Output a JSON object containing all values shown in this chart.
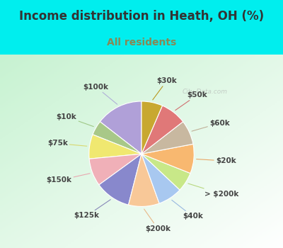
{
  "title": "Income distribution in Heath, OH (%)",
  "subtitle": "All residents",
  "title_color": "#333333",
  "subtitle_color": "#888855",
  "bg_outer": "#00eeee",
  "watermark": "City-Data.com",
  "labels": [
    "$100k",
    "$10k",
    "$75k",
    "$150k",
    "$125k",
    "$200k",
    "$40k",
    "> $200k",
    "$20k",
    "$60k",
    "$50k",
    "$30k"
  ],
  "values": [
    14.5,
    4.5,
    7.5,
    8.5,
    11.0,
    9.5,
    7.5,
    6.0,
    9.0,
    7.5,
    8.0,
    6.5
  ],
  "colors": [
    "#b0a0d8",
    "#a8c888",
    "#f0e870",
    "#f0b0b8",
    "#8888cc",
    "#f8c898",
    "#a8c8f0",
    "#c8e888",
    "#f8b870",
    "#c8b8a0",
    "#e07878",
    "#c8a830"
  ],
  "label_line_colors": [
    "#b0b0d8",
    "#a0c888",
    "#d8d870",
    "#e8a8b0",
    "#8888b8",
    "#e8b888",
    "#98b8e0",
    "#b8d880",
    "#e8a868",
    "#c0b098",
    "#d07070",
    "#b89820"
  ],
  "startangle": 90,
  "label_fontsize": 7.5,
  "title_fontsize": 12,
  "subtitle_fontsize": 10
}
